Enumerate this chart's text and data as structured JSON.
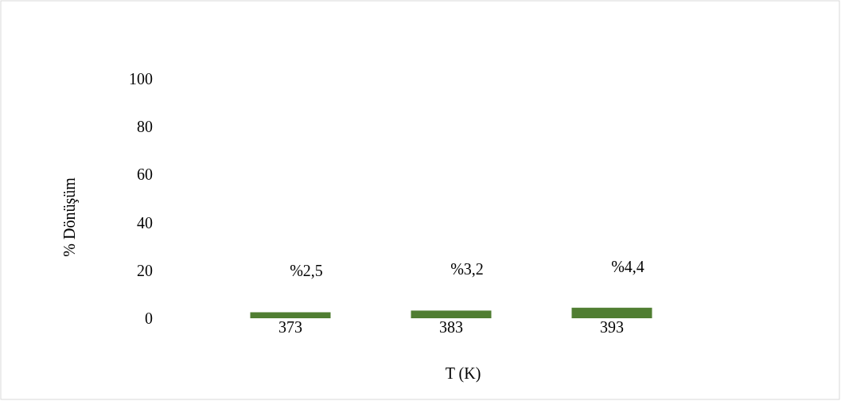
{
  "chart_data": {
    "type": "bar",
    "xlabel": "T (K)",
    "ylabel": "% Dönüşüm",
    "categories": [
      "373",
      "383",
      "393"
    ],
    "values": [
      2.5,
      3.2,
      4.4
    ],
    "value_labels": [
      "%2,5",
      "%3,2",
      "%4,4"
    ],
    "color": "#507e32",
    "ylim": [
      0,
      100
    ],
    "yticks": [
      0,
      20,
      40,
      60,
      80,
      100
    ],
    "grid": false
  }
}
